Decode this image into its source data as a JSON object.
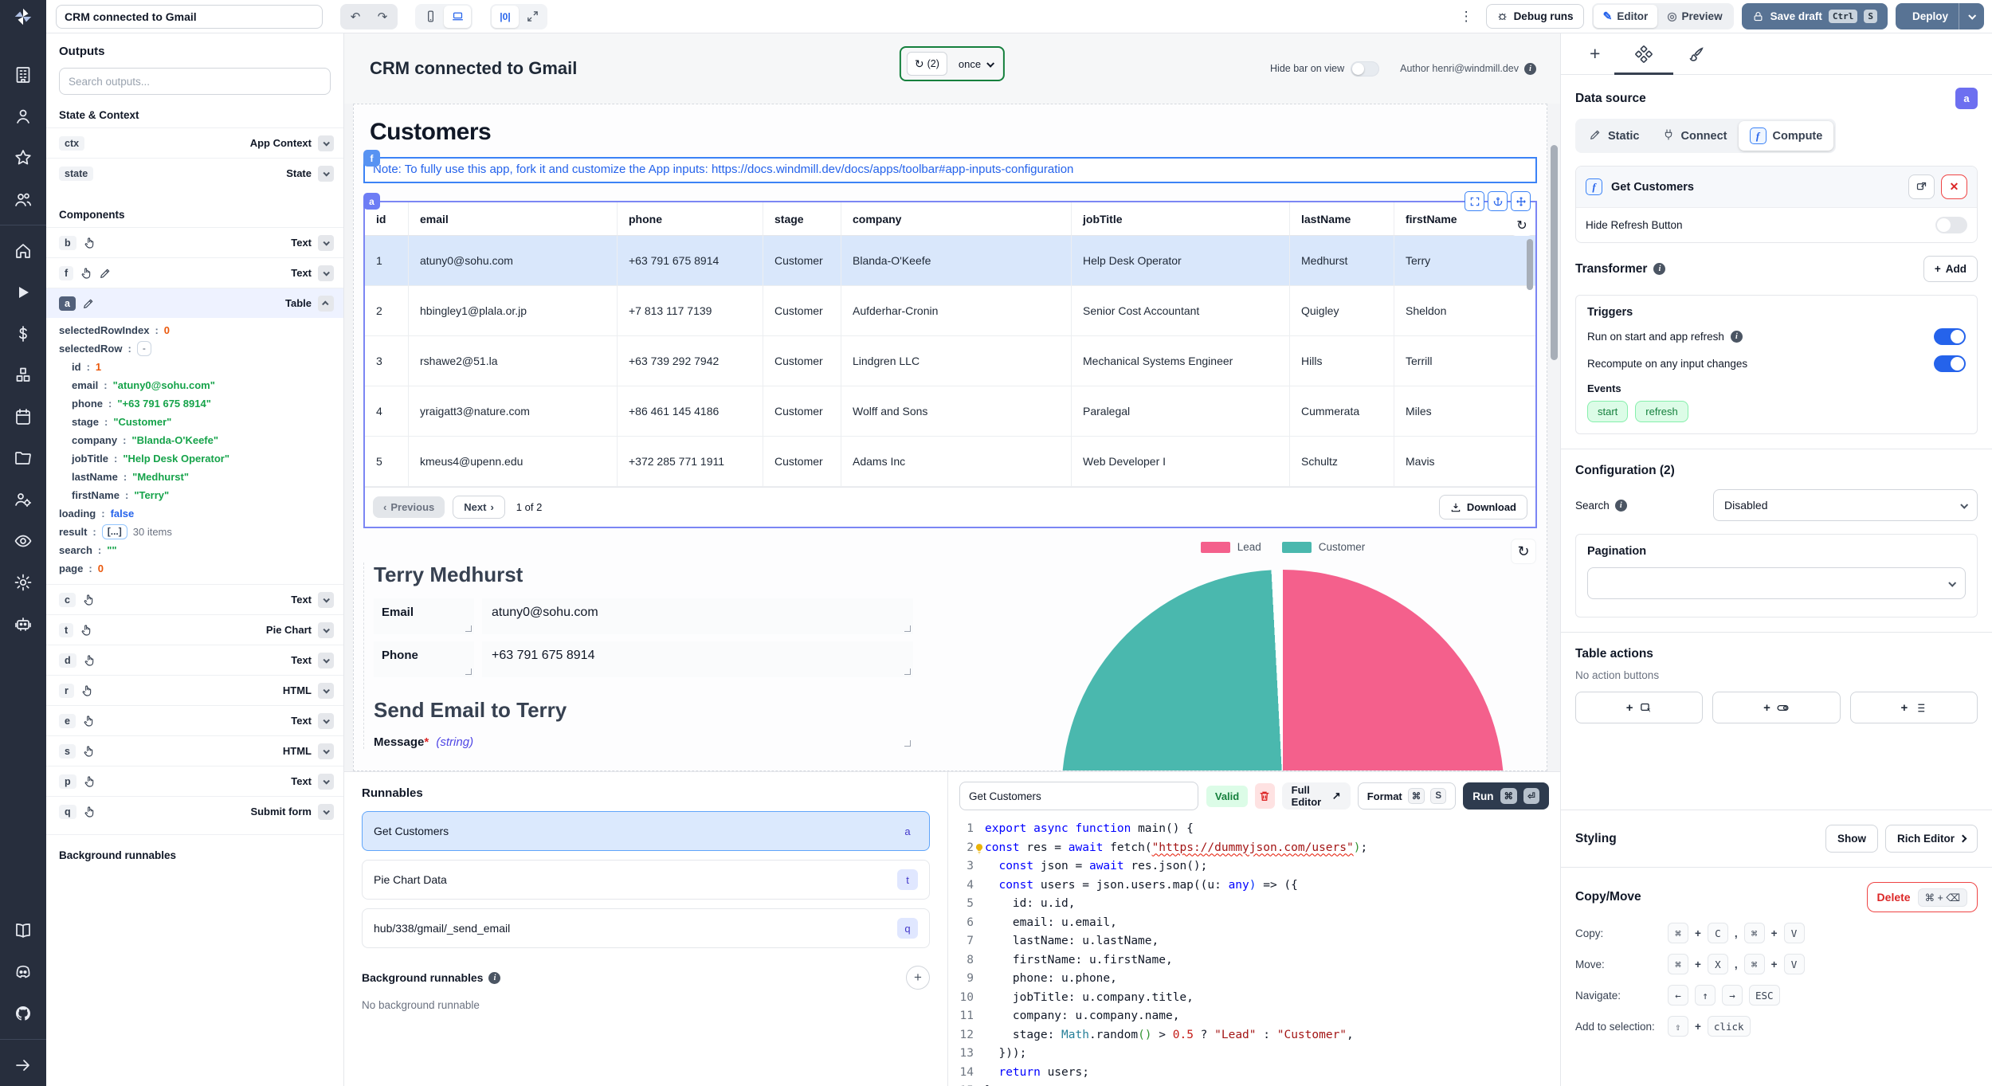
{
  "header": {
    "app_name": "CRM connected to Gmail",
    "debug_runs": "Debug runs",
    "editor": "Editor",
    "preview": "Preview",
    "save_draft": "Save draft",
    "save_keys": [
      "Ctrl",
      "S"
    ],
    "deploy": "Deploy"
  },
  "sidebar": {
    "top_icons": [
      "building",
      "person",
      "star",
      "users"
    ],
    "mid_icons": [
      "home",
      "play",
      "dollar",
      "cubes",
      "calendar",
      "folder",
      "users-gear",
      "eye",
      "gear",
      "robot"
    ],
    "bottom_icons": [
      "book",
      "discord",
      "github"
    ],
    "footer_icons": [
      "arrow-right"
    ]
  },
  "outputs": {
    "title": "Outputs",
    "search_placeholder": "Search outputs...",
    "state_title": "State & Context",
    "state_rows": [
      {
        "id": "ctx",
        "type": "App Context"
      },
      {
        "id": "state",
        "type": "State"
      }
    ],
    "components_title": "Components",
    "component_rows": [
      {
        "id": "b",
        "icons": [
          "hand"
        ],
        "type": "Text"
      },
      {
        "id": "f",
        "icons": [
          "hand",
          "pencil"
        ],
        "type": "Text"
      },
      {
        "id": "a",
        "icons": [
          "pencil"
        ],
        "type": "Table",
        "selected": true,
        "expanded": true
      },
      {
        "id": "c",
        "icons": [
          "hand"
        ],
        "type": "Text"
      },
      {
        "id": "t",
        "icons": [
          "hand"
        ],
        "type": "Pie Chart"
      },
      {
        "id": "d",
        "icons": [
          "hand"
        ],
        "type": "Text"
      },
      {
        "id": "r",
        "icons": [
          "hand"
        ],
        "type": "HTML"
      },
      {
        "id": "e",
        "icons": [
          "hand"
        ],
        "type": "Text"
      },
      {
        "id": "s",
        "icons": [
          "hand"
        ],
        "type": "HTML"
      },
      {
        "id": "p",
        "icons": [
          "hand"
        ],
        "type": "Text"
      },
      {
        "id": "q",
        "icons": [
          "hand"
        ],
        "type": "Submit form"
      }
    ],
    "tree": [
      {
        "key": "selectedRowIndex",
        "value": "0",
        "cls": "num",
        "indent": 0
      },
      {
        "key": "selectedRow",
        "chip": "-",
        "indent": 0
      },
      {
        "key": "id",
        "value": "1",
        "cls": "num",
        "indent": 1
      },
      {
        "key": "email",
        "value": "\"atuny0@sohu.com\"",
        "cls": "str",
        "indent": 1
      },
      {
        "key": "phone",
        "value": "\"+63 791 675 8914\"",
        "cls": "str",
        "indent": 1
      },
      {
        "key": "stage",
        "value": "\"Customer\"",
        "cls": "str",
        "indent": 1
      },
      {
        "key": "company",
        "value": "\"Blanda-O'Keefe\"",
        "cls": "str",
        "indent": 1
      },
      {
        "key": "jobTitle",
        "value": "\"Help Desk Operator\"",
        "cls": "str",
        "indent": 1
      },
      {
        "key": "lastName",
        "value": "\"Medhurst\"",
        "cls": "str",
        "indent": 1
      },
      {
        "key": "firstName",
        "value": "\"Terry\"",
        "cls": "str",
        "indent": 1
      },
      {
        "key": "loading",
        "value": "false",
        "cls": "bool",
        "indent": 0
      },
      {
        "key": "result",
        "chip": "[...]",
        "chip_blue": true,
        "suffix": "30 items",
        "indent": 0
      },
      {
        "key": "search",
        "value": "\"\"",
        "cls": "str",
        "indent": 0
      },
      {
        "key": "page",
        "value": "0",
        "cls": "num",
        "indent": 0
      }
    ],
    "background_title": "Background runnables"
  },
  "canvas": {
    "toolbar": {
      "title": "CRM connected to Gmail",
      "refresh_count": "(2)",
      "schedule": "once",
      "hide_bar_label": "Hide bar on view",
      "author": "Author henri@windmill.dev"
    },
    "heading": "Customers",
    "note_badge": "f",
    "table_badge": "a",
    "note": "Note: To fully use this app, fork it and customize the App inputs: https://docs.windmill.dev/docs/apps/toolbar#app-inputs-configuration",
    "table": {
      "columns": [
        "id",
        "email",
        "phone",
        "stage",
        "company",
        "jobTitle",
        "lastName",
        "firstName"
      ],
      "rows": [
        [
          "1",
          "atuny0@sohu.com",
          "+63 791 675 8914",
          "Customer",
          "Blanda-O'Keefe",
          "Help Desk Operator",
          "Medhurst",
          "Terry"
        ],
        [
          "2",
          "hbingley1@plala.or.jp",
          "+7 813 117 7139",
          "Customer",
          "Aufderhar-Cronin",
          "Senior Cost Accountant",
          "Quigley",
          "Sheldon"
        ],
        [
          "3",
          "rshawe2@51.la",
          "+63 739 292 7942",
          "Customer",
          "Lindgren LLC",
          "Mechanical Systems Engineer",
          "Hills",
          "Terrill"
        ],
        [
          "4",
          "yraigatt3@nature.com",
          "+86 461 145 4186",
          "Customer",
          "Wolff and Sons",
          "Paralegal",
          "Cummerata",
          "Miles"
        ],
        [
          "5",
          "kmeus4@upenn.edu",
          "+372 285 771 1911",
          "Customer",
          "Adams Inc",
          "Web Developer I",
          "Schultz",
          "Mavis"
        ]
      ],
      "selected_row_index": 0,
      "prev": "Previous",
      "next": "Next",
      "page_info": "1 of 2",
      "download": "Download"
    },
    "detail": {
      "name": "Terry Medhurst",
      "email_label": "Email",
      "email": "atuny0@sohu.com",
      "phone_label": "Phone",
      "phone": "+63 791 675 8914",
      "send_heading": "Send Email to Terry",
      "message_label": "Message",
      "message_required": "*",
      "message_type": "(string)"
    },
    "legend": [
      {
        "label": "Lead",
        "color": "#f4608c"
      },
      {
        "label": "Customer",
        "color": "#4ab8ae"
      }
    ]
  },
  "chart_data": {
    "type": "pie",
    "labels": [
      "Lead",
      "Customer"
    ],
    "values_percent_estimated": [
      52,
      48
    ],
    "colors": [
      "#f4608c",
      "#4ab8ae"
    ],
    "legend_position": "top"
  },
  "runnables": {
    "title": "Runnables",
    "items": [
      {
        "name": "Get Customers",
        "badge": "a",
        "selected": true
      },
      {
        "name": "Pie Chart Data",
        "badge": "t"
      },
      {
        "name": "hub/338/gmail/_send_email",
        "badge": "q"
      }
    ],
    "background_title": "Background runnables",
    "background_empty": "No background runnable"
  },
  "editor": {
    "name": "Get Customers",
    "valid": "Valid",
    "full_editor": "Full Editor",
    "format": "Format",
    "format_keys": [
      "⌘",
      "S"
    ],
    "run": "Run",
    "run_keys": [
      "⌘",
      "⏎"
    ],
    "lines": [
      {
        "n": "1",
        "segs": [
          {
            "t": "export ",
            "c": "k"
          },
          {
            "t": "async ",
            "c": "k"
          },
          {
            "t": "function ",
            "c": "k"
          },
          {
            "t": "main() {"
          }
        ]
      },
      {
        "n": "2",
        "bulb": true,
        "segs": [
          {
            "t": "const ",
            "c": "k"
          },
          {
            "t": "res = "
          },
          {
            "t": "await ",
            "c": "k"
          },
          {
            "t": "fetch("
          },
          {
            "t": "\"https://dummyjson.com/users\"",
            "c": "su"
          },
          {
            "t": ")",
            "c": "b2"
          },
          {
            "t": ";"
          }
        ]
      },
      {
        "n": "3",
        "segs": [
          {
            "t": "  "
          },
          {
            "t": "const ",
            "c": "k"
          },
          {
            "t": "json = "
          },
          {
            "t": "await ",
            "c": "k"
          },
          {
            "t": "res.json();"
          }
        ]
      },
      {
        "n": "4",
        "segs": [
          {
            "t": "  "
          },
          {
            "t": "const ",
            "c": "k"
          },
          {
            "t": "users = json.users.map((u: "
          },
          {
            "t": "any",
            "c": "k"
          },
          {
            "t": ")",
            "c": "b1"
          },
          {
            "t": " => ({"
          }
        ]
      },
      {
        "n": "5",
        "segs": [
          {
            "t": "    id: u.id,"
          }
        ]
      },
      {
        "n": "6",
        "segs": [
          {
            "t": "    email: u.email,"
          }
        ]
      },
      {
        "n": "7",
        "segs": [
          {
            "t": "    lastName: u.lastName,"
          }
        ]
      },
      {
        "n": "8",
        "segs": [
          {
            "t": "    firstName: u.firstName,"
          }
        ]
      },
      {
        "n": "9",
        "segs": [
          {
            "t": "    phone: u.phone,"
          }
        ]
      },
      {
        "n": "10",
        "segs": [
          {
            "t": "    jobTitle: u.company.title,"
          }
        ]
      },
      {
        "n": "11",
        "segs": [
          {
            "t": "    company: u.company.name,"
          }
        ]
      },
      {
        "n": "12",
        "segs": [
          {
            "t": "    stage: "
          },
          {
            "t": "Math",
            "c": "ty"
          },
          {
            "t": ".random"
          },
          {
            "t": "()",
            "c": "b2"
          },
          {
            "t": " > "
          },
          {
            "t": "0.5",
            "c": "n"
          },
          {
            "t": " ? "
          },
          {
            "t": "\"Lead\"",
            "c": "s"
          },
          {
            "t": " : "
          },
          {
            "t": "\"Customer\"",
            "c": "s"
          },
          {
            "t": ","
          }
        ]
      },
      {
        "n": "13",
        "segs": [
          {
            "t": "  }));"
          }
        ]
      },
      {
        "n": "14",
        "segs": [
          {
            "t": "  "
          },
          {
            "t": "return ",
            "c": "k"
          },
          {
            "t": "users;"
          }
        ]
      },
      {
        "n": "15",
        "segs": [
          {
            "t": "}"
          }
        ]
      }
    ]
  },
  "inspector": {
    "data_source_title": "Data source",
    "badge": "a",
    "segments": [
      {
        "label": "Static",
        "icon": "pencil"
      },
      {
        "label": "Connect",
        "icon": "plug"
      },
      {
        "label": "Compute",
        "icon": "fx",
        "active": true
      }
    ],
    "fx_glyph": "f",
    "runnable_name": "Get Customers",
    "hide_refresh": "Hide Refresh Button",
    "transformer_title": "Transformer",
    "add": "Add",
    "triggers_title": "Triggers",
    "trigger_rows": [
      {
        "label": "Run on start and app refresh",
        "info": true,
        "on": true
      },
      {
        "label": "Recompute on any input changes",
        "on": true
      }
    ],
    "events_label": "Events",
    "events": [
      "start",
      "refresh"
    ],
    "config_title": "Configuration (2)",
    "search_label": "Search",
    "search_value": "Disabled",
    "pagination_title": "Pagination",
    "table_actions_title": "Table actions",
    "table_actions_empty": "No action buttons",
    "styling_title": "Styling",
    "show": "Show",
    "rich_editor": "Rich Editor",
    "copy_move_title": "Copy/Move",
    "delete": "Delete",
    "delete_keys": "⌘ + ⌫",
    "shortcuts": [
      {
        "label": "Copy:",
        "tokens": [
          "k:⌘",
          "s:+",
          "k:C",
          "s:,",
          "k:⌘",
          "s:+",
          "k:V"
        ]
      },
      {
        "label": "Move:",
        "tokens": [
          "k:⌘",
          "s:+",
          "k:X",
          "s:,",
          "k:⌘",
          "s:+",
          "k:V"
        ]
      },
      {
        "label": "Navigate:",
        "tokens": [
          "k:←",
          "k:↑",
          "k:→",
          "k:ESC"
        ]
      },
      {
        "label": "Add to selection:",
        "tokens": [
          "k:⇧",
          "s:+",
          "k:click"
        ]
      }
    ]
  }
}
